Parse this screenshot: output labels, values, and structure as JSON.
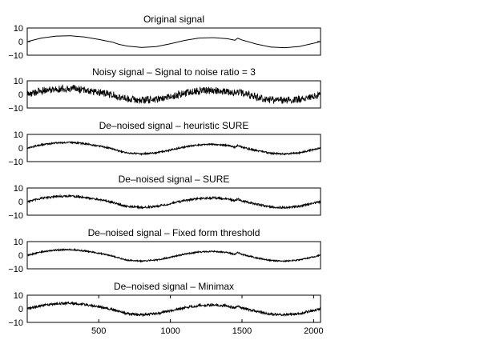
{
  "figure": {
    "background": "#ffffff",
    "axis_color": "#000000",
    "line_color": "#000000"
  },
  "chart_data": [
    {
      "type": "line",
      "title": "Original signal",
      "xlim": [
        1,
        2048
      ],
      "ylim": [
        -10,
        10
      ],
      "yticks": [
        10,
        0,
        -10
      ],
      "xticks": [],
      "grid": false,
      "noise": 0,
      "series": [
        {
          "x": [
            1,
            100,
            200,
            300,
            400,
            500,
            600,
            640,
            700,
            800,
            900,
            1000,
            1100,
            1200,
            1300,
            1400,
            1450,
            1470,
            1500,
            1600,
            1700,
            1800,
            1900,
            2000,
            2048
          ],
          "y": [
            0,
            2.6,
            4,
            4.3,
            3.4,
            1.6,
            -0.5,
            -2,
            -3.3,
            -4.3,
            -3.7,
            -1.6,
            0.9,
            2.6,
            2.9,
            2.1,
            1,
            2.5,
            1.2,
            -1.8,
            -4,
            -4.5,
            -3.6,
            -1.2,
            0
          ]
        }
      ]
    },
    {
      "type": "line",
      "title": "Noisy signal – Signal to noise ratio = 3",
      "xlim": [
        1,
        2048
      ],
      "ylim": [
        -10,
        10
      ],
      "yticks": [
        10,
        0,
        -10
      ],
      "xticks": [],
      "grid": false,
      "noise": 1.7,
      "series": [
        {
          "x": [
            1,
            100,
            200,
            300,
            400,
            500,
            600,
            640,
            700,
            800,
            900,
            1000,
            1100,
            1200,
            1300,
            1400,
            1450,
            1470,
            1500,
            1600,
            1700,
            1800,
            1900,
            2000,
            2048
          ],
          "y": [
            0,
            2.6,
            4,
            4.3,
            3.4,
            1.6,
            -0.5,
            -2,
            -3.3,
            -4.3,
            -3.7,
            -1.6,
            0.9,
            2.6,
            2.9,
            2.1,
            1,
            2.5,
            1.2,
            -1.8,
            -4,
            -4.5,
            -3.6,
            -1.2,
            0
          ]
        }
      ]
    },
    {
      "type": "line",
      "title": "De–noised signal – heuristic SURE",
      "xlim": [
        1,
        2048
      ],
      "ylim": [
        -10,
        10
      ],
      "yticks": [
        10,
        0,
        -10
      ],
      "xticks": [],
      "grid": false,
      "noise": 0.35,
      "series": [
        {
          "x": [
            1,
            100,
            200,
            300,
            400,
            500,
            600,
            650,
            700,
            800,
            900,
            1000,
            1100,
            1200,
            1300,
            1400,
            1450,
            1470,
            1500,
            1600,
            1700,
            1800,
            1900,
            2000,
            2048
          ],
          "y": [
            0,
            2.4,
            3.8,
            4.1,
            3.2,
            1.5,
            -0.6,
            -2.4,
            -3.6,
            -4.3,
            -3.6,
            -1.5,
            0.8,
            2.4,
            2.8,
            2,
            0.6,
            2,
            0.6,
            -1.9,
            -3.9,
            -4.4,
            -3.5,
            -1.2,
            0
          ]
        }
      ]
    },
    {
      "type": "line",
      "title": "De–noised signal – SURE",
      "xlim": [
        1,
        2048
      ],
      "ylim": [
        -10,
        10
      ],
      "yticks": [
        10,
        0,
        -10
      ],
      "xticks": [],
      "grid": false,
      "noise": 0.45,
      "series": [
        {
          "x": [
            1,
            100,
            200,
            300,
            400,
            500,
            600,
            650,
            700,
            800,
            900,
            1000,
            1100,
            1200,
            1300,
            1400,
            1450,
            1470,
            1500,
            1600,
            1700,
            1800,
            1900,
            2000,
            2048
          ],
          "y": [
            0,
            2.4,
            3.8,
            4.1,
            3.2,
            1.5,
            -0.6,
            -2.4,
            -3.6,
            -4.3,
            -3.6,
            -1.5,
            0.8,
            2.4,
            2.8,
            2,
            0.6,
            2,
            0.6,
            -1.9,
            -3.9,
            -4.4,
            -3.5,
            -1.2,
            0
          ]
        }
      ]
    },
    {
      "type": "line",
      "title": "De–noised signal – Fixed form threshold",
      "xlim": [
        1,
        2048
      ],
      "ylim": [
        -10,
        10
      ],
      "yticks": [
        10,
        0,
        -10
      ],
      "xticks": [],
      "grid": false,
      "noise": 0.3,
      "series": [
        {
          "x": [
            1,
            100,
            200,
            300,
            400,
            500,
            600,
            650,
            700,
            800,
            900,
            1000,
            1100,
            1200,
            1300,
            1400,
            1450,
            1470,
            1500,
            1600,
            1700,
            1800,
            1900,
            2000,
            2048
          ],
          "y": [
            0,
            2.4,
            3.8,
            4.1,
            3.2,
            1.5,
            -0.6,
            -2.4,
            -3.6,
            -4.3,
            -3.6,
            -1.5,
            0.8,
            2.4,
            2.8,
            2,
            0.6,
            2,
            0.6,
            -1.9,
            -3.9,
            -4.4,
            -3.5,
            -1.2,
            0
          ]
        }
      ]
    },
    {
      "type": "line",
      "title": "De–noised signal – Minimax",
      "xlim": [
        1,
        2048
      ],
      "ylim": [
        -10,
        10
      ],
      "yticks": [
        10,
        0,
        -10
      ],
      "xticks": [
        500,
        1000,
        1500,
        2000
      ],
      "grid": false,
      "noise": 0.55,
      "series": [
        {
          "x": [
            1,
            100,
            200,
            300,
            400,
            500,
            600,
            650,
            700,
            800,
            900,
            1000,
            1100,
            1200,
            1300,
            1400,
            1450,
            1470,
            1500,
            1600,
            1700,
            1800,
            1900,
            2000,
            2048
          ],
          "y": [
            0,
            2.4,
            3.8,
            4.1,
            3.2,
            1.5,
            -0.6,
            -2.4,
            -3.6,
            -4.3,
            -3.6,
            -1.5,
            0.8,
            2.4,
            2.8,
            2,
            0.6,
            2,
            0.6,
            -1.9,
            -3.9,
            -4.4,
            -3.5,
            -1.2,
            0
          ]
        }
      ]
    }
  ]
}
